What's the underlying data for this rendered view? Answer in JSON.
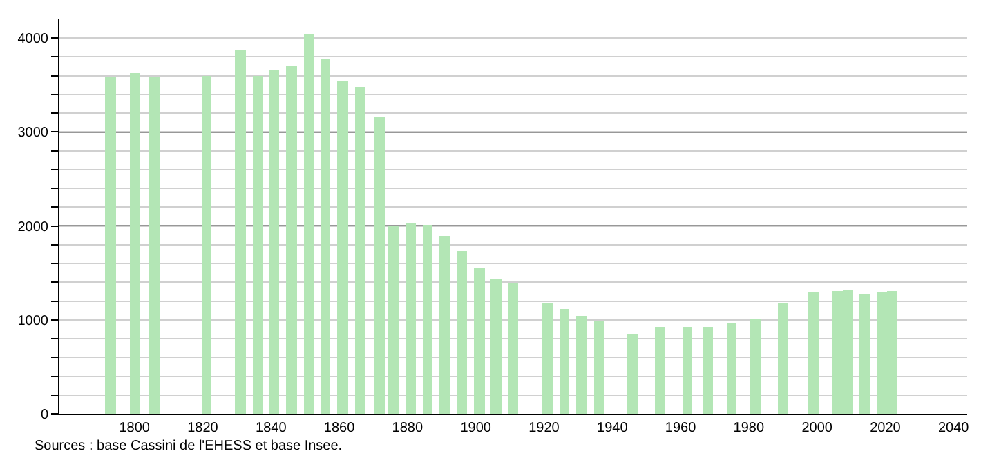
{
  "chart_data": {
    "type": "bar",
    "x": [
      1793,
      1800,
      1806,
      1821,
      1831,
      1836,
      1841,
      1846,
      1851,
      1856,
      1861,
      1866,
      1872,
      1876,
      1881,
      1886,
      1891,
      1896,
      1901,
      1906,
      1911,
      1921,
      1926,
      1931,
      1936,
      1946,
      1954,
      1962,
      1968,
      1975,
      1982,
      1990,
      1999,
      2006,
      2009,
      2014,
      2019,
      2022
    ],
    "values": [
      3580,
      3630,
      3580,
      3600,
      3870,
      3600,
      3660,
      3700,
      4040,
      3780,
      3540,
      3480,
      3160,
      2000,
      2030,
      2010,
      1890,
      1730,
      1560,
      1440,
      1390,
      1170,
      1110,
      1050,
      980,
      850,
      920,
      920,
      920,
      970,
      1010,
      1170,
      1290,
      1310,
      1320,
      1280,
      1290,
      1310
    ],
    "color": "#b3e6b5",
    "xlim": [
      1778,
      2044
    ],
    "xticks": [
      1800,
      1820,
      1840,
      1860,
      1880,
      1900,
      1920,
      1940,
      1960,
      1980,
      2000,
      2020,
      2040
    ],
    "ylim": [
      0,
      4200
    ],
    "yticks": [
      0,
      {
        "value": 200,
        "label": null
      },
      {
        "value": 400,
        "label": null
      },
      {
        "value": 600,
        "label": null
      },
      {
        "value": 800,
        "label": null
      },
      1000,
      {
        "value": 1200,
        "label": null
      },
      {
        "value": 1400,
        "label": null
      },
      {
        "value": 1600,
        "label": null
      },
      {
        "value": 1800,
        "label": null
      },
      2000,
      {
        "value": 2200,
        "label": null
      },
      {
        "value": 2400,
        "label": null
      },
      {
        "value": 2600,
        "label": null
      },
      {
        "value": 2800,
        "label": null
      },
      3000,
      {
        "value": 3200,
        "label": null
      },
      {
        "value": 3400,
        "label": null
      },
      {
        "value": 3600,
        "label": null
      },
      {
        "value": 3800,
        "label": null
      },
      4000
    ],
    "grid": "y",
    "annotations": [
      "Sources : base Cassini de l'EHESS et base Insee."
    ]
  }
}
